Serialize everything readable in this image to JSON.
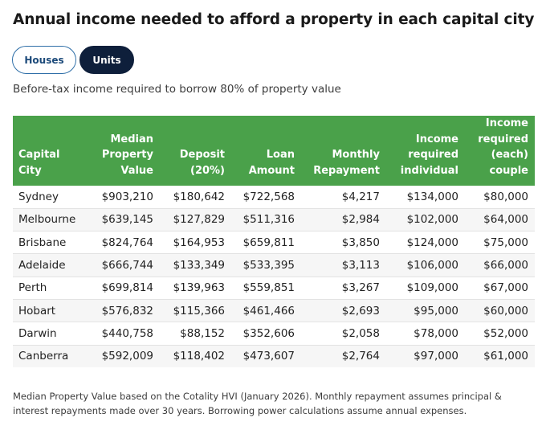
{
  "title": "Annual income needed to afford a property in each capital city",
  "toggle": {
    "options": [
      {
        "label": "Houses",
        "selected": false
      },
      {
        "label": "Units",
        "selected": true
      }
    ]
  },
  "subtitle": "Before-tax income required to borrow 80% of property value",
  "table": {
    "headers": [
      [
        "Capital",
        "City"
      ],
      [
        "Median",
        "Property",
        "Value"
      ],
      [
        "Deposit",
        "(20%)"
      ],
      [
        "Loan",
        "Amount"
      ],
      [
        "Monthly",
        "Repayment"
      ],
      [
        "Income",
        "required",
        "individual"
      ],
      [
        "Income",
        "required",
        "(each)",
        "couple"
      ]
    ],
    "rows": [
      [
        "Sydney",
        "$903,210",
        "$180,642",
        "$722,568",
        "$4,217",
        "$134,000",
        "$80,000"
      ],
      [
        "Melbourne",
        "$639,145",
        "$127,829",
        "$511,316",
        "$2,984",
        "$102,000",
        "$64,000"
      ],
      [
        "Brisbane",
        "$824,764",
        "$164,953",
        "$659,811",
        "$3,850",
        "$124,000",
        "$75,000"
      ],
      [
        "Adelaide",
        "$666,744",
        "$133,349",
        "$533,395",
        "$3,113",
        "$106,000",
        "$66,000"
      ],
      [
        "Perth",
        "$699,814",
        "$139,963",
        "$559,851",
        "$3,267",
        "$109,000",
        "$67,000"
      ],
      [
        "Hobart",
        "$576,832",
        "$115,366",
        "$461,466",
        "$2,693",
        "$95,000",
        "$60,000"
      ],
      [
        "Darwin",
        "$440,758",
        "$88,152",
        "$352,606",
        "$2,058",
        "$78,000",
        "$52,000"
      ],
      [
        "Canberra",
        "$592,009",
        "$118,402",
        "$473,607",
        "$2,764",
        "$97,000",
        "$61,000"
      ]
    ]
  },
  "footnote": "Median Property Value based on the Cotality HVI (January 2026). Monthly repayment assumes principal & interest repayments made over 30 years. Borrowing power calculations assume annual expenses.",
  "colors": {
    "header_green": "#4aa14a",
    "toggle_active": "#0e1f3b",
    "toggle_border": "#2f6fa8"
  }
}
